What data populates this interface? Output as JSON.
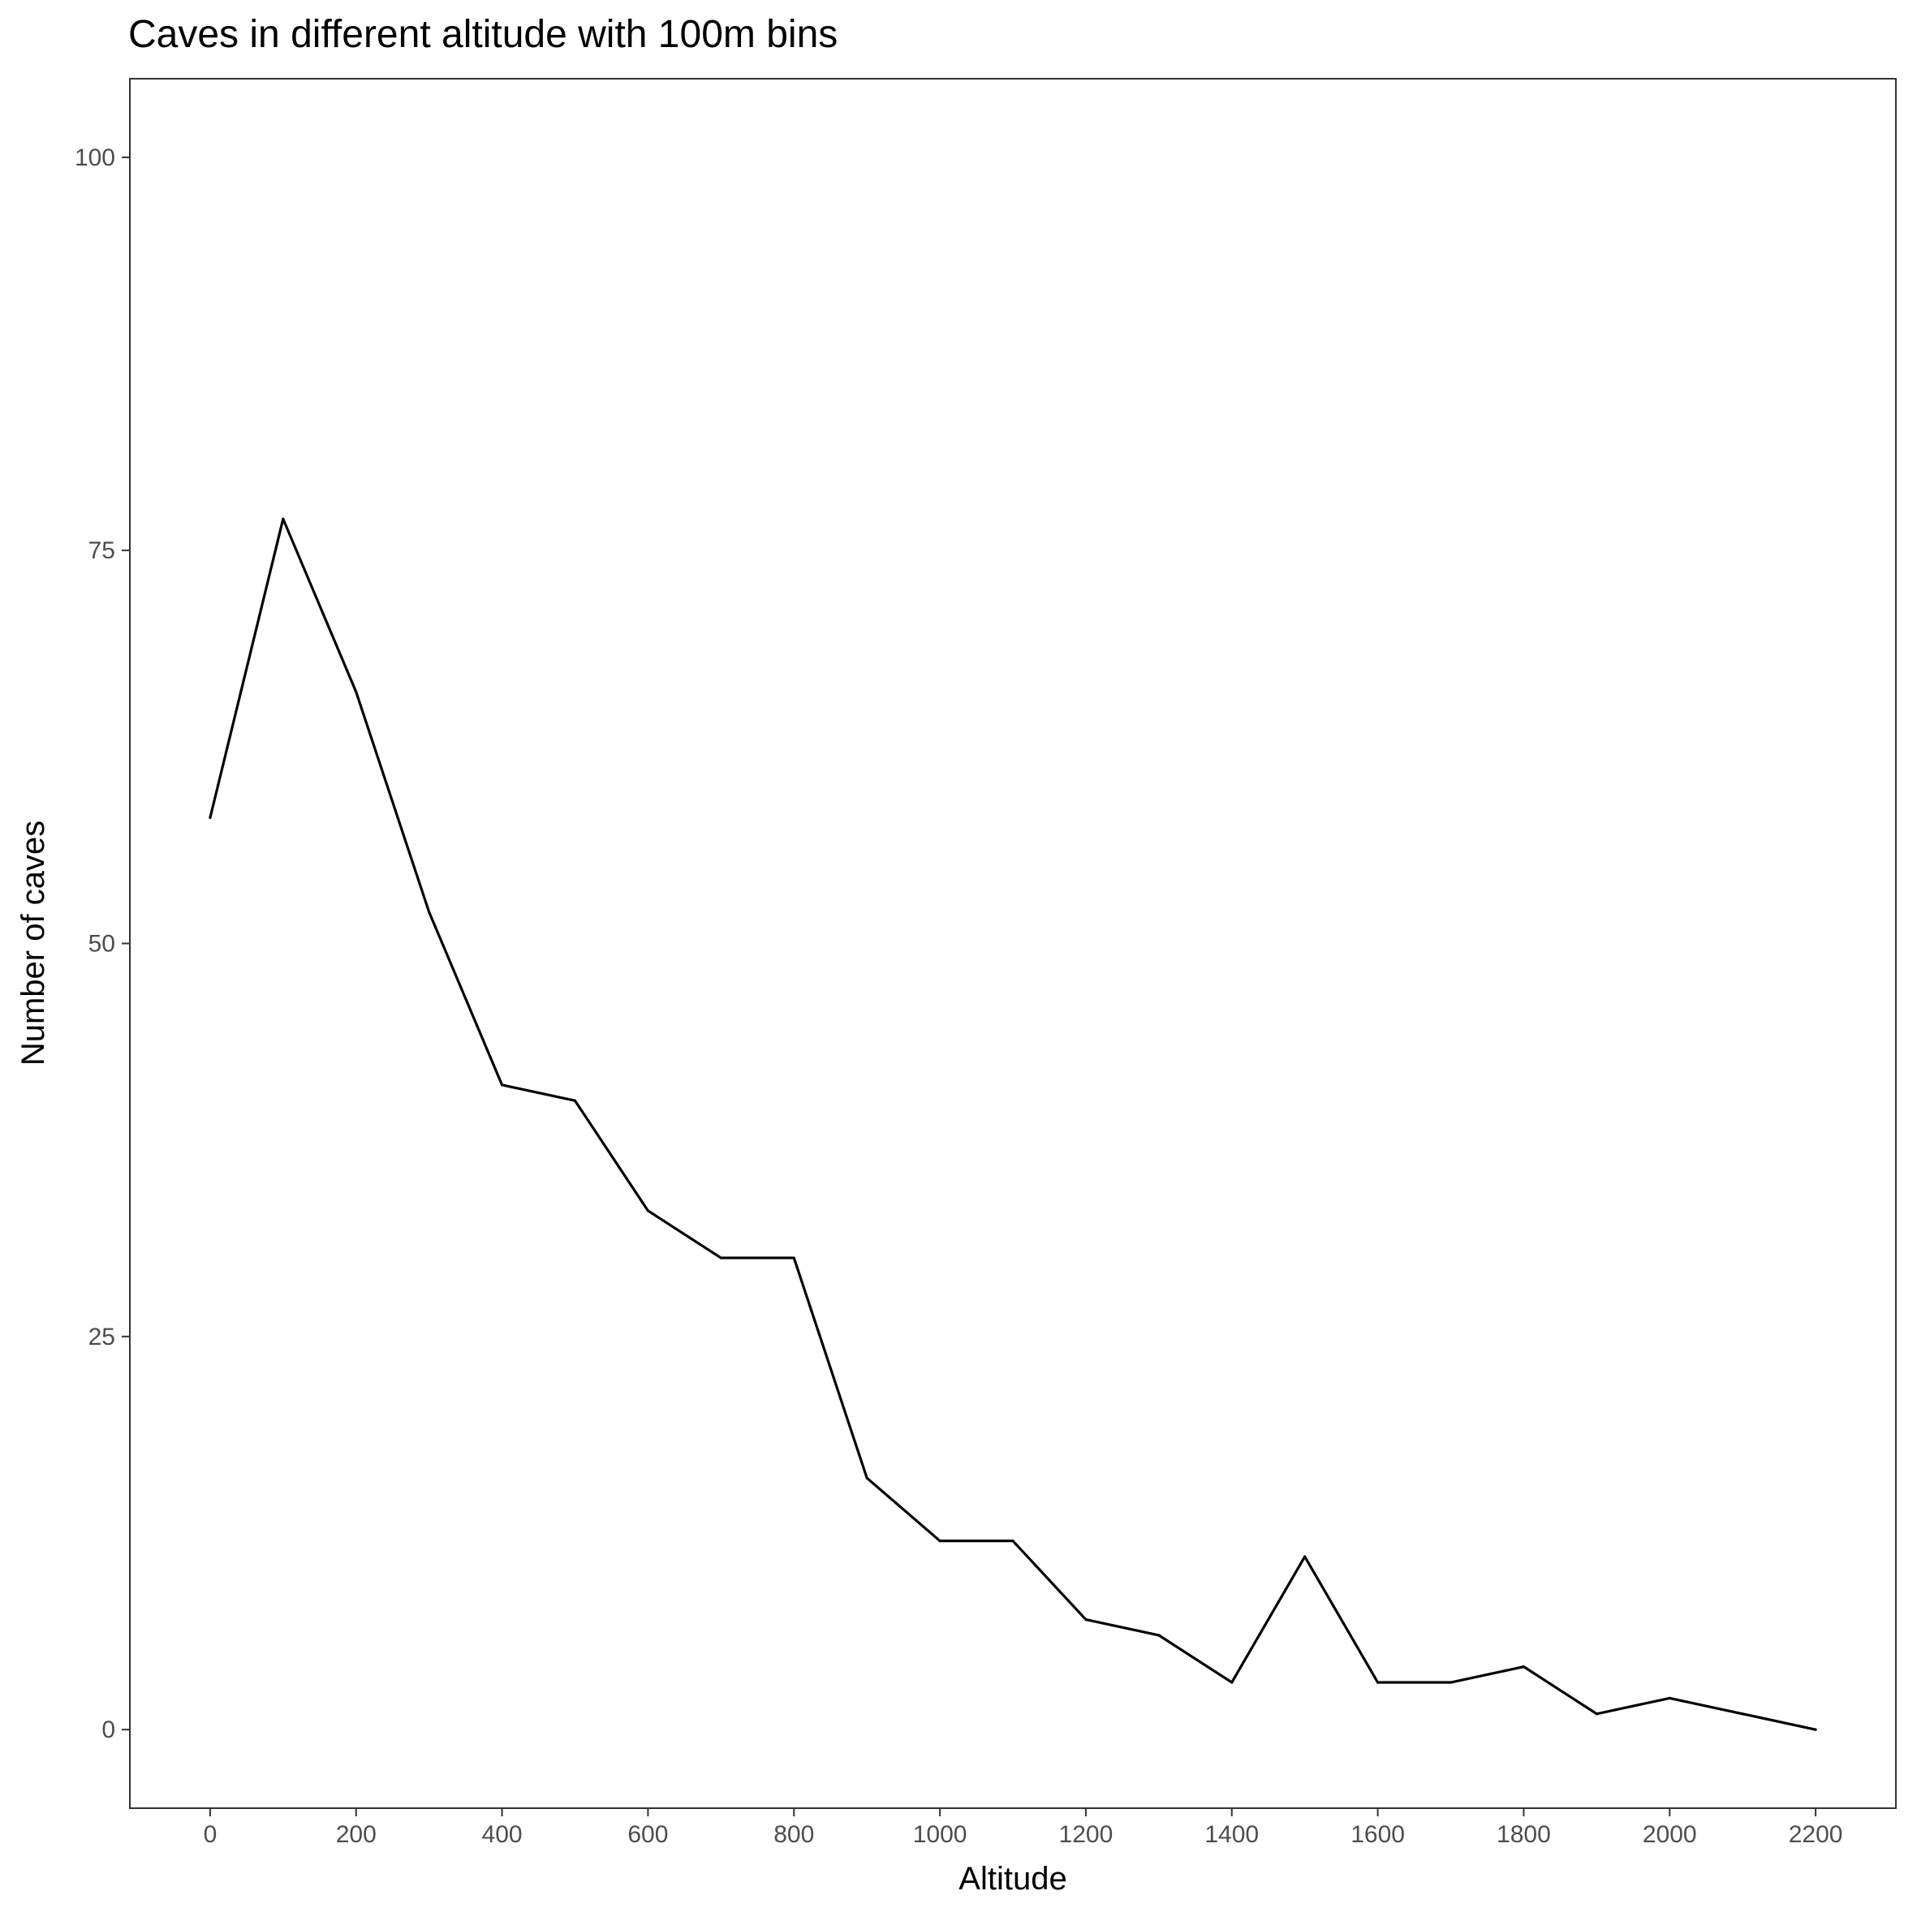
{
  "chart_data": {
    "type": "line",
    "title": "Caves in different altitude with 100m bins",
    "xlabel": "Altitude",
    "ylabel": "Number of caves",
    "xlim": [
      -110,
      2310
    ],
    "ylim": [
      -5,
      105
    ],
    "x_ticks": [
      0,
      200,
      400,
      600,
      800,
      1000,
      1200,
      1400,
      1600,
      1800,
      2000,
      2200
    ],
    "y_ticks": [
      0,
      25,
      50,
      75,
      100
    ],
    "grid": false,
    "legend": "none",
    "line_color": "#000000",
    "series": [
      {
        "x": [
          0,
          100,
          200,
          300,
          400,
          500,
          600,
          700,
          800,
          900,
          1000,
          1100,
          1200,
          1300,
          1400,
          1500,
          1600,
          1700,
          1800,
          1900,
          2000,
          2100,
          2200
        ],
        "y": [
          58,
          77,
          66,
          52,
          41,
          40,
          33,
          30,
          30,
          16,
          12,
          12,
          7,
          6,
          3,
          11,
          3,
          3,
          4,
          1,
          2,
          1,
          0
        ]
      }
    ]
  }
}
